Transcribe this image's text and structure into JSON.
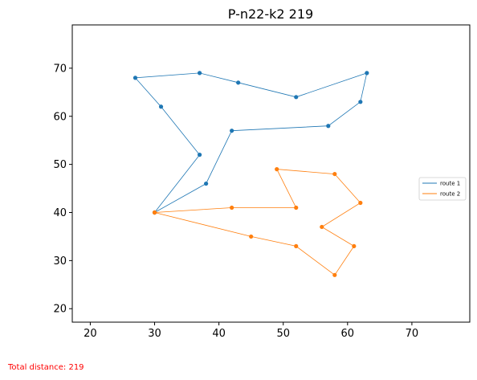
{
  "chart_data": {
    "type": "line",
    "title": "P-n22-k2 219",
    "xlabel": "",
    "ylabel": "",
    "xlim": [
      17.2,
      79.0
    ],
    "ylim": [
      17.2,
      79.0
    ],
    "xticks": [
      20,
      30,
      40,
      50,
      60,
      70
    ],
    "yticks": [
      20,
      30,
      40,
      50,
      60,
      70
    ],
    "grid": false,
    "legend_position": "right",
    "series": [
      {
        "name": "route 1",
        "color": "#1f77b4",
        "x": [
          30,
          37,
          31,
          27,
          37,
          43,
          52,
          63,
          62,
          57,
          42,
          38,
          30
        ],
        "y": [
          40,
          52,
          62,
          68,
          69,
          67,
          64,
          69,
          63,
          58,
          57,
          46,
          40
        ]
      },
      {
        "name": "route 2",
        "color": "#ff7f0e",
        "x": [
          30,
          45,
          52,
          58,
          61,
          56,
          62,
          58,
          49,
          52,
          42,
          30
        ],
        "y": [
          40,
          35,
          33,
          27,
          33,
          37,
          42,
          48,
          49,
          41,
          41,
          40
        ]
      }
    ]
  },
  "footer": {
    "total_distance": "Total distance: 219"
  }
}
